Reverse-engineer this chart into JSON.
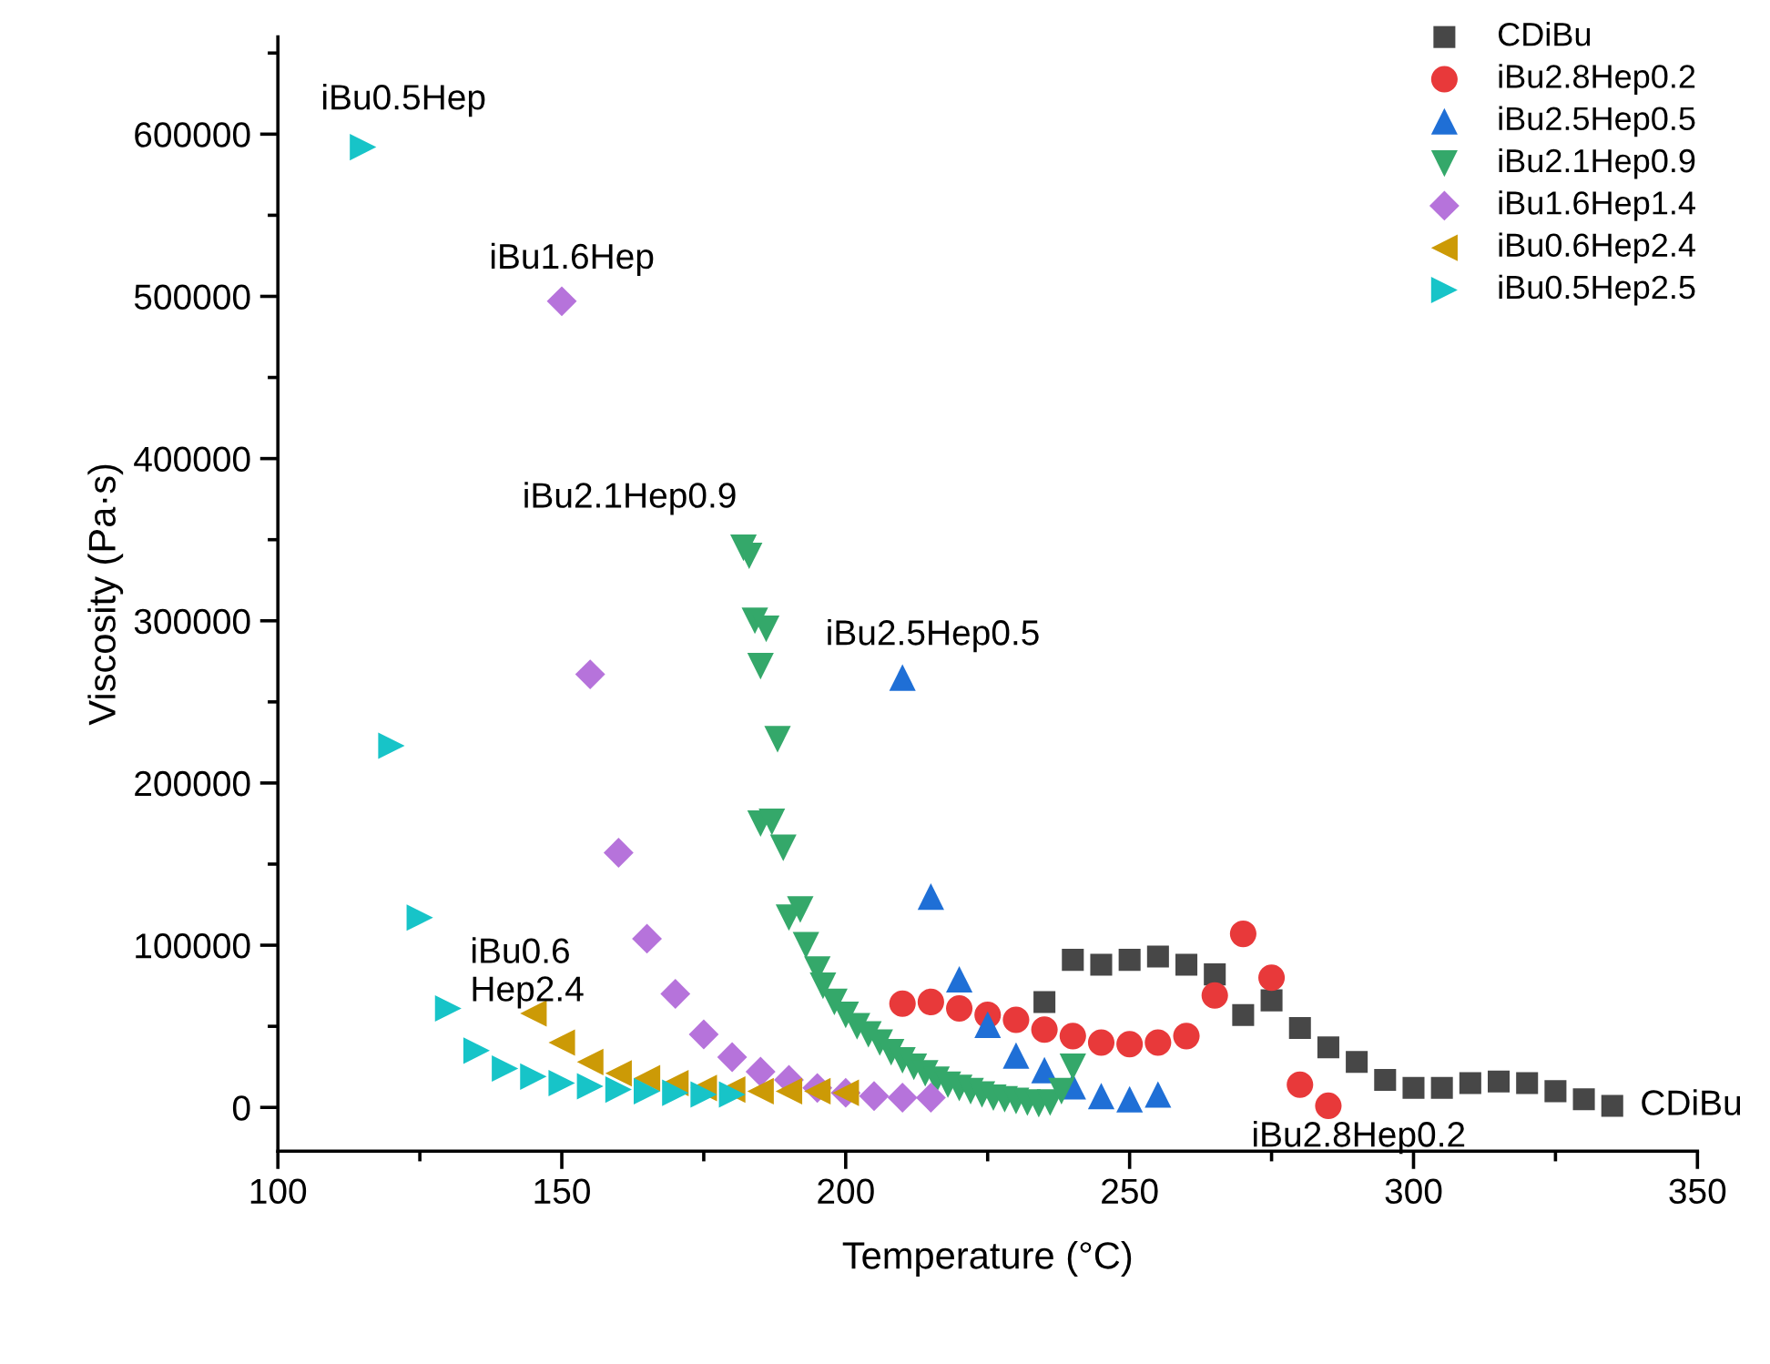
{
  "chart_data": {
    "type": "scatter",
    "xlabel": "Temperature (°C)",
    "ylabel": "Viscosity (Pa·s)",
    "xlim": [
      100,
      350
    ],
    "xticks": [
      100,
      150,
      200,
      250,
      300,
      350
    ],
    "ylim": [
      -27000,
      660000
    ],
    "yticks": [
      0,
      100000,
      200000,
      300000,
      400000,
      500000,
      600000
    ],
    "grid": false,
    "legend": "top right",
    "series": [
      {
        "name": "CDiBu",
        "color": "#474747",
        "marker": "square",
        "x": [
          235,
          240,
          245,
          250,
          255,
          260,
          265,
          270,
          275,
          280,
          285,
          290,
          295,
          300,
          305,
          310,
          315,
          320,
          325,
          330,
          335
        ],
        "values": [
          65000,
          91000,
          88000,
          91000,
          93000,
          88000,
          82000,
          57000,
          66000,
          49000,
          37000,
          28000,
          17000,
          12000,
          12000,
          15000,
          16000,
          15000,
          10000,
          5000,
          1000
        ]
      },
      {
        "name": "iBu2.8Hep0.2",
        "color": "#e8393a",
        "marker": "circle",
        "x": [
          210,
          215,
          220,
          225,
          230,
          235,
          240,
          245,
          250,
          255,
          260,
          265,
          270,
          275,
          280,
          285
        ],
        "values": [
          64000,
          65000,
          61000,
          57000,
          54000,
          48000,
          44000,
          40000,
          39000,
          40000,
          44000,
          69000,
          107000,
          80000,
          14000,
          1000
        ]
      },
      {
        "name": "iBu2.5Hep0.5",
        "color": "#1f6fd6",
        "marker": "triangle",
        "x": [
          210,
          215,
          220,
          225,
          230,
          235,
          240,
          245,
          250,
          255
        ],
        "values": [
          265000,
          130000,
          79000,
          51000,
          32000,
          23000,
          13000,
          7000,
          5000,
          8000
        ]
      },
      {
        "name": "iBu2.1Hep0.9",
        "color": "#34a86a",
        "marker": "triangle_down",
        "x": [
          182,
          183,
          184,
          186,
          185,
          188,
          185,
          187,
          189,
          190,
          192,
          193,
          195,
          196,
          198,
          200,
          202,
          204,
          206,
          208,
          210,
          212,
          214,
          216,
          218,
          220,
          222,
          224,
          226,
          228,
          230,
          232,
          234,
          236,
          238,
          240
        ],
        "values": [
          345000,
          340000,
          300000,
          295000,
          272000,
          227000,
          175000,
          176000,
          160000,
          117000,
          122000,
          100000,
          85000,
          75000,
          65000,
          57000,
          50000,
          45000,
          40000,
          34000,
          29000,
          25000,
          21000,
          17000,
          14000,
          12000,
          10000,
          8000,
          6000,
          5000,
          4000,
          3000,
          2000,
          3000,
          10000,
          25000
        ]
      },
      {
        "name": "iBu1.6Hep1.4",
        "color": "#b673db",
        "marker": "diamond",
        "x": [
          150,
          155,
          160,
          165,
          170,
          175,
          180,
          185,
          190,
          195,
          200,
          205,
          210,
          215
        ],
        "values": [
          497000,
          267000,
          157000,
          104000,
          70000,
          45000,
          31000,
          22000,
          17000,
          12000,
          9000,
          7000,
          6000,
          6000
        ]
      },
      {
        "name": "iBu0.6Hep2.4",
        "color": "#cc9a06",
        "marker": "triangle_left",
        "x": [
          145,
          150,
          155,
          160,
          165,
          170,
          175,
          180,
          185,
          190,
          195,
          200
        ],
        "values": [
          58000,
          40000,
          28000,
          21000,
          18000,
          15000,
          12000,
          11000,
          10000,
          10000,
          10000,
          9000
        ]
      },
      {
        "name": "iBu0.5Hep2.5",
        "color": "#17c4c8",
        "marker": "triangle_right",
        "x": [
          115,
          120,
          125,
          130,
          135,
          140,
          145,
          150,
          155,
          160,
          165,
          170,
          175,
          180
        ],
        "values": [
          592000,
          223000,
          117000,
          61000,
          35000,
          24000,
          19000,
          15000,
          13000,
          11000,
          10000,
          9000,
          8000,
          8000
        ]
      }
    ],
    "annotations": [
      {
        "text": "iBu0.5Hep",
        "x": 115,
        "y": 592000
      },
      {
        "text": "iBu1.6Hep",
        "x": 150,
        "y": 497000
      },
      {
        "text": "iBu2.1Hep0.9",
        "x": 182,
        "y": 345000
      },
      {
        "text": "iBu2.5Hep0.5",
        "x": 210,
        "y": 265000
      },
      {
        "text": "iBu0.6\nHep2.4",
        "x": 145,
        "y": 58000
      },
      {
        "text": "iBu2.8Hep0.2",
        "x": 285,
        "y": 1000
      },
      {
        "text": "CDiBu",
        "x": 335,
        "y": 1000
      }
    ]
  }
}
